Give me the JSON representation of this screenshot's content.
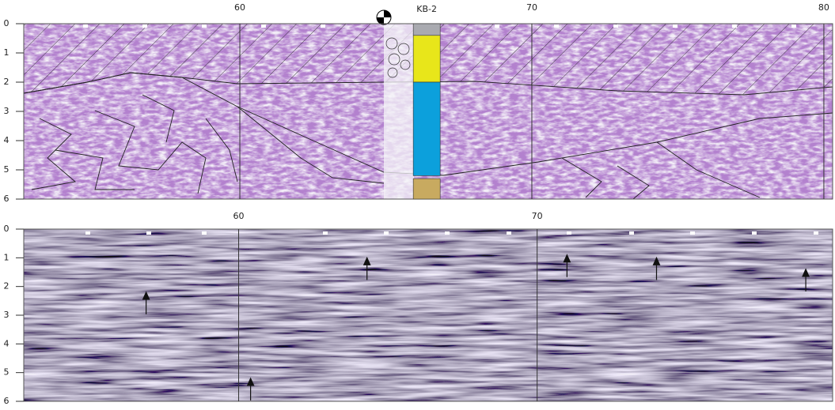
{
  "chart_data": [
    {
      "type": "radargram",
      "xlim": [
        52.6,
        80.3
      ],
      "ylim": [
        0,
        6
      ],
      "xticks": [
        60,
        70,
        80
      ],
      "yticks": [
        0,
        1,
        2,
        3,
        4,
        5,
        6
      ],
      "grid": true,
      "borehole": {
        "label": "KB-2",
        "x": 66.4,
        "layers": [
          {
            "top": 0,
            "bottom": 0.4,
            "color": "#a9aab0"
          },
          {
            "top": 0.4,
            "bottom": 2.0,
            "color": "#e8e61a"
          },
          {
            "top": 2.0,
            "bottom": 5.2,
            "color": "#0ca0dc"
          },
          {
            "top": 5.3,
            "bottom": 6,
            "color": "#c8aa60"
          }
        ]
      }
    },
    {
      "type": "radargram",
      "xlim": [
        52.8,
        79.9
      ],
      "ylim": [
        0,
        6
      ],
      "xticks": [
        60,
        70
      ],
      "yticks": [
        0,
        1,
        2,
        3,
        4,
        5,
        6
      ],
      "grid": true,
      "arrows": [
        {
          "x": 56.9,
          "depth": 2.2
        },
        {
          "x": 64.3,
          "depth": 1.0
        },
        {
          "x": 71.0,
          "depth": 0.9
        },
        {
          "x": 74.0,
          "depth": 1.0
        },
        {
          "x": 79.0,
          "depth": 1.4
        },
        {
          "x": 60.4,
          "depth": 5.2
        }
      ]
    }
  ]
}
